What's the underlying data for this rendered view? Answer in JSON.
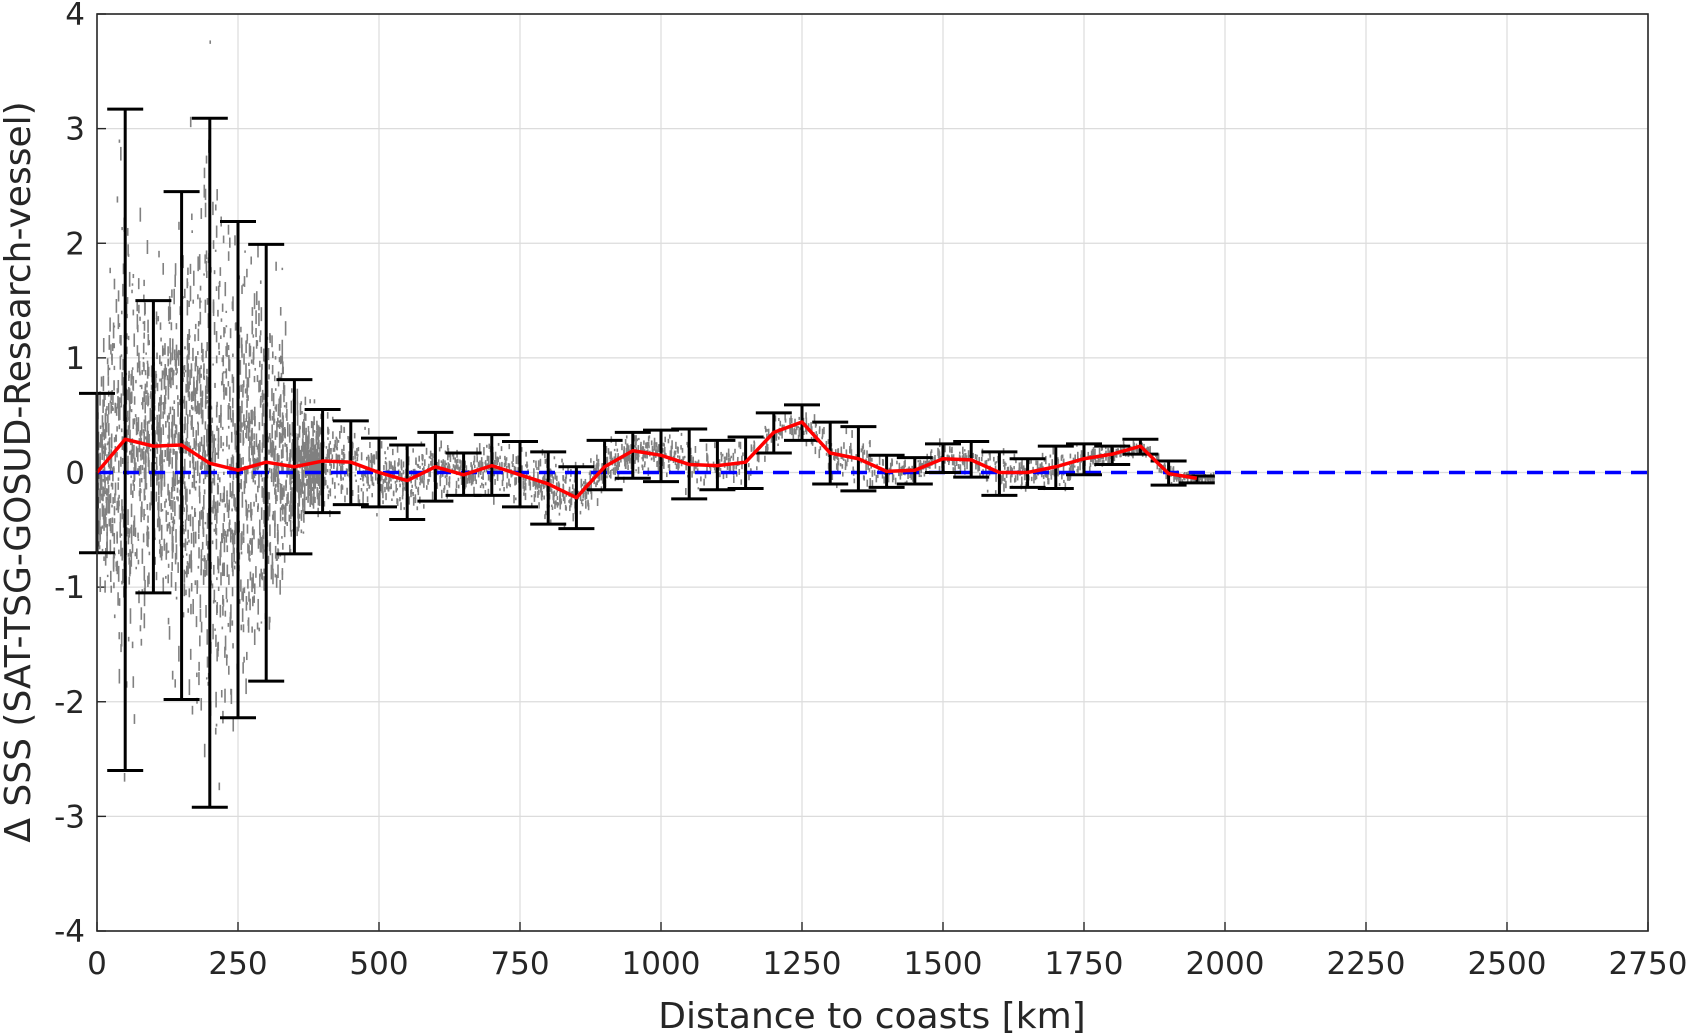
{
  "chart_data": {
    "type": "scatter",
    "xlabel": "Distance to coasts [km]",
    "ylabel": "Δ SSS (SAT-TSG-GOSUD-Research-vessel)",
    "xlim": [
      0,
      2750
    ],
    "ylim": [
      -4,
      4
    ],
    "xticks": [
      0,
      250,
      500,
      750,
      1000,
      1250,
      1500,
      1750,
      2000,
      2250,
      2500,
      2750
    ],
    "yticks": [
      4,
      3,
      2,
      1,
      0,
      -1,
      -2,
      -3,
      -4
    ],
    "xtick_labels": [
      "0",
      "250",
      "500",
      "750",
      "1000",
      "1250",
      "1500",
      "1750",
      "2000",
      "2250",
      "2500",
      "2750"
    ],
    "ytick_labels": [
      "4",
      "3",
      "2",
      "1",
      "0",
      "-1",
      "-2",
      "-3",
      "-4"
    ],
    "grid": true,
    "colors": {
      "scatter": "#808080",
      "mean_line": "#ff0000",
      "errorbars": "#000000",
      "zero_line": "#0000ff"
    },
    "reference_line": {
      "y": 0,
      "style": "dashed"
    },
    "bin_stats": [
      {
        "x": 0,
        "mean": 0.0,
        "low": -0.7,
        "high": 0.69
      },
      {
        "x": 50,
        "mean": 0.29,
        "low": -2.6,
        "high": 3.17
      },
      {
        "x": 100,
        "mean": 0.23,
        "low": -1.05,
        "high": 1.5
      },
      {
        "x": 150,
        "mean": 0.24,
        "low": -1.98,
        "high": 2.45
      },
      {
        "x": 200,
        "mean": 0.08,
        "low": -2.92,
        "high": 3.09
      },
      {
        "x": 250,
        "mean": 0.02,
        "low": -2.14,
        "high": 2.19
      },
      {
        "x": 300,
        "mean": 0.09,
        "low": -1.82,
        "high": 1.99
      },
      {
        "x": 350,
        "mean": 0.05,
        "low": -0.71,
        "high": 0.81
      },
      {
        "x": 400,
        "mean": 0.1,
        "low": -0.35,
        "high": 0.55
      },
      {
        "x": 450,
        "mean": 0.09,
        "low": -0.28,
        "high": 0.45
      },
      {
        "x": 500,
        "mean": 0.0,
        "low": -0.3,
        "high": 0.3
      },
      {
        "x": 550,
        "mean": -0.07,
        "low": -0.41,
        "high": 0.24
      },
      {
        "x": 600,
        "mean": 0.05,
        "low": -0.25,
        "high": 0.35
      },
      {
        "x": 650,
        "mean": -0.02,
        "low": -0.2,
        "high": 0.17
      },
      {
        "x": 700,
        "mean": 0.06,
        "low": -0.2,
        "high": 0.33
      },
      {
        "x": 750,
        "mean": -0.02,
        "low": -0.3,
        "high": 0.27
      },
      {
        "x": 800,
        "mean": -0.1,
        "low": -0.45,
        "high": 0.18
      },
      {
        "x": 850,
        "mean": -0.22,
        "low": -0.49,
        "high": 0.05
      },
      {
        "x": 900,
        "mean": 0.05,
        "low": -0.15,
        "high": 0.28
      },
      {
        "x": 950,
        "mean": 0.19,
        "low": -0.05,
        "high": 0.35
      },
      {
        "x": 1000,
        "mean": 0.15,
        "low": -0.08,
        "high": 0.37
      },
      {
        "x": 1050,
        "mean": 0.07,
        "low": -0.23,
        "high": 0.38
      },
      {
        "x": 1100,
        "mean": 0.06,
        "low": -0.15,
        "high": 0.28
      },
      {
        "x": 1150,
        "mean": 0.09,
        "low": -0.14,
        "high": 0.31
      },
      {
        "x": 1200,
        "mean": 0.35,
        "low": 0.17,
        "high": 0.52
      },
      {
        "x": 1250,
        "mean": 0.44,
        "low": 0.28,
        "high": 0.59
      },
      {
        "x": 1300,
        "mean": 0.17,
        "low": -0.1,
        "high": 0.44
      },
      {
        "x": 1350,
        "mean": 0.12,
        "low": -0.16,
        "high": 0.4
      },
      {
        "x": 1400,
        "mean": 0.01,
        "low": -0.13,
        "high": 0.15
      },
      {
        "x": 1450,
        "mean": 0.02,
        "low": -0.1,
        "high": 0.13
      },
      {
        "x": 1500,
        "mean": 0.12,
        "low": 0.0,
        "high": 0.25
      },
      {
        "x": 1550,
        "mean": 0.11,
        "low": -0.04,
        "high": 0.27
      },
      {
        "x": 1600,
        "mean": 0.0,
        "low": -0.2,
        "high": 0.18
      },
      {
        "x": 1650,
        "mean": 0.0,
        "low": -0.13,
        "high": 0.12
      },
      {
        "x": 1700,
        "mean": 0.05,
        "low": -0.14,
        "high": 0.23
      },
      {
        "x": 1750,
        "mean": 0.12,
        "low": -0.02,
        "high": 0.25
      },
      {
        "x": 1800,
        "mean": 0.16,
        "low": 0.07,
        "high": 0.23
      },
      {
        "x": 1850,
        "mean": 0.23,
        "low": 0.16,
        "high": 0.29
      },
      {
        "x": 1900,
        "mean": -0.01,
        "low": -0.11,
        "high": 0.1
      },
      {
        "x": 1950,
        "mean": -0.05,
        "low": -0.09,
        "high": -0.03
      }
    ]
  }
}
